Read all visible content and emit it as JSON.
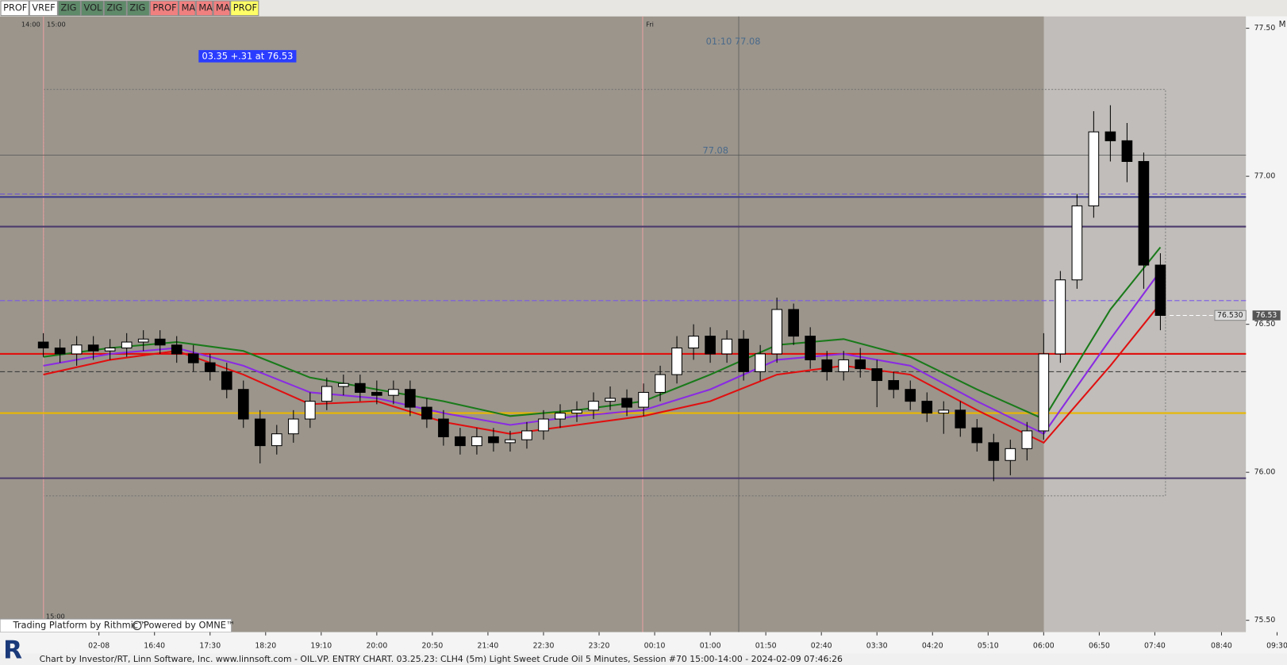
{
  "chart_data": {
    "type": "candlestick",
    "toolbar": [
      {
        "label": "PROF",
        "color": "#ffffff"
      },
      {
        "label": "VREF",
        "color": "#ffffff"
      },
      {
        "label": "ZIG",
        "color": "#5f8a6a"
      },
      {
        "label": "VOL",
        "color": "#5f8a6a"
      },
      {
        "label": "ZIG",
        "color": "#5f8a6a"
      },
      {
        "label": "ZIG",
        "color": "#5f8a6a"
      },
      {
        "label": "PROF",
        "color": "#f08080"
      },
      {
        "label": "MA",
        "color": "#f08080"
      },
      {
        "label": "MA",
        "color": "#f08080"
      },
      {
        "label": "MA",
        "color": "#f08080"
      },
      {
        "label": "PROF",
        "color": "#ffff66"
      }
    ],
    "corner_label": "M",
    "session_labels": [
      "14:00",
      "15:00"
    ],
    "day_label": "Fri",
    "crosshair_label": "01:10  77.08",
    "crosshair_price_label": "77.08",
    "info_box": "03.35  +.31 at 76.53",
    "bottom_session_label": "15:00",
    "last_price": 76.53,
    "cursor_price": {
      "value": 76.53,
      "label": "76.530"
    },
    "platform_label": "Trading Platform by Rithmic™",
    "powered_label": "Powered by OMNE™",
    "logo": "R",
    "footer": "Chart by Investor/RT, Linn Software, Inc. www.linnsoft.com - OIL.VP. ENTRY CHART.   03.25.23: CLH4 (5m) Light Sweet Crude Oil 5 Minutes, Session #70 15:00-14:00 - 2024-02-09 07:46:26",
    "xlim": [
      -39,
      1082
    ],
    "xticks": [
      {
        "value": 50,
        "label": "02-08"
      },
      {
        "value": 100,
        "label": "16:40"
      },
      {
        "value": 150,
        "label": "17:30"
      },
      {
        "value": 200,
        "label": "18:20"
      },
      {
        "value": 250,
        "label": "19:10"
      },
      {
        "value": 300,
        "label": "20:00"
      },
      {
        "value": 350,
        "label": "20:50"
      },
      {
        "value": 400,
        "label": "21:40"
      },
      {
        "value": 450,
        "label": "22:30"
      },
      {
        "value": 500,
        "label": "23:20"
      },
      {
        "value": 550,
        "label": "00:10"
      },
      {
        "value": 600,
        "label": "01:00"
      },
      {
        "value": 650,
        "label": "01:50"
      },
      {
        "value": 700,
        "label": "02:40"
      },
      {
        "value": 750,
        "label": "03:30"
      },
      {
        "value": 800,
        "label": "04:20"
      },
      {
        "value": 850,
        "label": "05:10"
      },
      {
        "value": 900,
        "label": "06:00"
      },
      {
        "value": 950,
        "label": "06:50"
      },
      {
        "value": 1000,
        "label": "07:40"
      },
      {
        "value": 1060,
        "label": "08:40"
      },
      {
        "value": 1110,
        "label": "09:30"
      }
    ],
    "ylim": [
      75.46,
      77.54
    ],
    "yticks": [
      {
        "value": 75.5,
        "label": "75.50"
      },
      {
        "value": 76.0,
        "label": "76.00"
      },
      {
        "value": 76.5,
        "label": "76.50"
      },
      {
        "value": 77.0,
        "label": "77.00"
      },
      {
        "value": 77.5,
        "label": "77.50"
      }
    ],
    "x": [
      0,
      15,
      30,
      45,
      60,
      75,
      90,
      105,
      120,
      135,
      150,
      165,
      180,
      195,
      210,
      225,
      240,
      255,
      270,
      285,
      300,
      315,
      330,
      345,
      360,
      375,
      390,
      405,
      420,
      435,
      450,
      465,
      480,
      495,
      510,
      525,
      540,
      555,
      570,
      585,
      600,
      615,
      630,
      645,
      660,
      675,
      690,
      705,
      720,
      735,
      750,
      765,
      780,
      795,
      810,
      825,
      840,
      855,
      870,
      885,
      900,
      915,
      930,
      945,
      960,
      975,
      990,
      1005
    ],
    "open": [
      76.44,
      76.42,
      76.4,
      76.43,
      76.41,
      76.42,
      76.44,
      76.45,
      76.43,
      76.4,
      76.37,
      76.34,
      76.28,
      76.18,
      76.09,
      76.13,
      76.18,
      76.24,
      76.29,
      76.3,
      76.27,
      76.26,
      76.28,
      76.22,
      76.18,
      76.12,
      76.09,
      76.12,
      76.1,
      76.11,
      76.14,
      76.18,
      76.2,
      76.21,
      76.24,
      76.25,
      76.22,
      76.27,
      76.33,
      76.42,
      76.46,
      76.4,
      76.45,
      76.34,
      76.4,
      76.55,
      76.46,
      76.38,
      76.34,
      76.38,
      76.35,
      76.31,
      76.28,
      76.24,
      76.2,
      76.21,
      76.15,
      76.1,
      76.04,
      76.08,
      76.14,
      76.4,
      76.65,
      76.9,
      77.15,
      77.12,
      77.05,
      76.7
    ],
    "high": [
      76.47,
      76.45,
      76.46,
      76.46,
      76.45,
      76.47,
      76.48,
      76.48,
      76.46,
      76.43,
      76.4,
      76.37,
      76.31,
      76.21,
      76.16,
      76.21,
      76.27,
      76.32,
      76.33,
      76.33,
      76.31,
      76.31,
      76.31,
      76.25,
      76.21,
      76.15,
      76.15,
      76.15,
      76.14,
      76.17,
      76.21,
      76.23,
      76.24,
      76.27,
      76.29,
      76.28,
      76.3,
      76.36,
      76.46,
      76.5,
      76.49,
      76.48,
      76.48,
      76.43,
      76.59,
      76.57,
      76.49,
      76.41,
      76.41,
      76.42,
      76.38,
      76.34,
      76.31,
      76.27,
      76.24,
      76.24,
      76.18,
      76.13,
      76.11,
      76.17,
      76.47,
      76.68,
      76.94,
      77.22,
      77.24,
      77.18,
      77.08,
      76.74
    ],
    "low": [
      76.39,
      76.37,
      76.36,
      76.38,
      76.38,
      76.39,
      76.41,
      76.4,
      76.37,
      76.34,
      76.31,
      76.25,
      76.15,
      76.03,
      76.06,
      76.1,
      76.15,
      76.21,
      76.26,
      76.24,
      76.23,
      76.23,
      76.19,
      76.15,
      76.09,
      76.06,
      76.06,
      76.07,
      76.07,
      76.08,
      76.11,
      76.15,
      76.17,
      76.18,
      76.21,
      76.19,
      76.19,
      76.24,
      76.3,
      76.38,
      76.37,
      76.37,
      76.31,
      76.31,
      76.37,
      76.43,
      76.35,
      76.31,
      76.31,
      76.32,
      76.22,
      76.25,
      76.21,
      76.17,
      76.13,
      76.12,
      76.07,
      75.97,
      75.99,
      76.04,
      76.11,
      76.37,
      76.62,
      76.86,
      77.05,
      76.98,
      76.62,
      76.48
    ],
    "close": [
      76.42,
      76.4,
      76.43,
      76.41,
      76.42,
      76.44,
      76.45,
      76.43,
      76.4,
      76.37,
      76.34,
      76.28,
      76.18,
      76.09,
      76.13,
      76.18,
      76.24,
      76.29,
      76.3,
      76.27,
      76.26,
      76.28,
      76.22,
      76.18,
      76.12,
      76.09,
      76.12,
      76.1,
      76.11,
      76.14,
      76.18,
      76.2,
      76.21,
      76.24,
      76.25,
      76.22,
      76.27,
      76.33,
      76.42,
      76.46,
      76.4,
      76.45,
      76.34,
      76.4,
      76.55,
      76.46,
      76.38,
      76.34,
      76.38,
      76.35,
      76.31,
      76.28,
      76.24,
      76.2,
      76.21,
      76.15,
      76.1,
      76.04,
      76.08,
      76.14,
      76.4,
      76.65,
      76.9,
      77.15,
      77.12,
      77.05,
      76.7,
      76.53
    ],
    "overlays": [
      {
        "color": "#1a7a1a",
        "x": [
          0,
          60,
          120,
          180,
          240,
          300,
          360,
          420,
          480,
          540,
          600,
          660,
          720,
          780,
          840,
          900,
          960,
          1005
        ],
        "values": [
          76.39,
          76.42,
          76.44,
          76.41,
          76.32,
          76.28,
          76.24,
          76.19,
          76.21,
          76.24,
          76.33,
          76.43,
          76.45,
          76.39,
          76.28,
          76.18,
          76.55,
          76.76
        ]
      },
      {
        "color": "#8a2be2",
        "x": [
          0,
          60,
          120,
          180,
          240,
          300,
          360,
          420,
          480,
          540,
          600,
          660,
          720,
          780,
          840,
          900,
          960,
          1005
        ],
        "values": [
          76.36,
          76.4,
          76.42,
          76.36,
          76.27,
          76.25,
          76.2,
          76.16,
          76.19,
          76.21,
          76.28,
          76.38,
          76.4,
          76.36,
          76.24,
          76.13,
          76.45,
          76.68
        ]
      },
      {
        "color": "#e01010",
        "x": [
          0,
          60,
          120,
          180,
          240,
          300,
          360,
          420,
          480,
          540,
          600,
          660,
          720,
          780,
          840,
          900,
          960,
          1005
        ],
        "values": [
          76.33,
          76.38,
          76.41,
          76.33,
          76.23,
          76.24,
          76.17,
          76.13,
          76.16,
          76.19,
          76.24,
          76.33,
          76.36,
          76.33,
          76.21,
          76.1,
          76.36,
          76.57
        ]
      }
    ],
    "levels": [
      {
        "value": 76.94,
        "color": "#6a4fd8",
        "dashed": true
      },
      {
        "value": 76.93,
        "color": "#3a3a8c",
        "dashed": false
      },
      {
        "value": 76.83,
        "color": "#4a3a6c",
        "dashed": false
      },
      {
        "value": 76.58,
        "color": "#7a5ae8",
        "dashed": true
      },
      {
        "value": 76.4,
        "color": "#e8a000",
        "dashed": false
      },
      {
        "value": 76.4,
        "color": "#e01010",
        "dashed": false
      },
      {
        "value": 76.34,
        "color": "#333333",
        "dashed": true
      },
      {
        "value": 76.2,
        "color": "#e8b800",
        "dashed": false
      },
      {
        "value": 75.98,
        "color": "#4a3a6c",
        "dashed": false
      }
    ],
    "up_color": "#ffffff",
    "down_color": "#000000"
  }
}
